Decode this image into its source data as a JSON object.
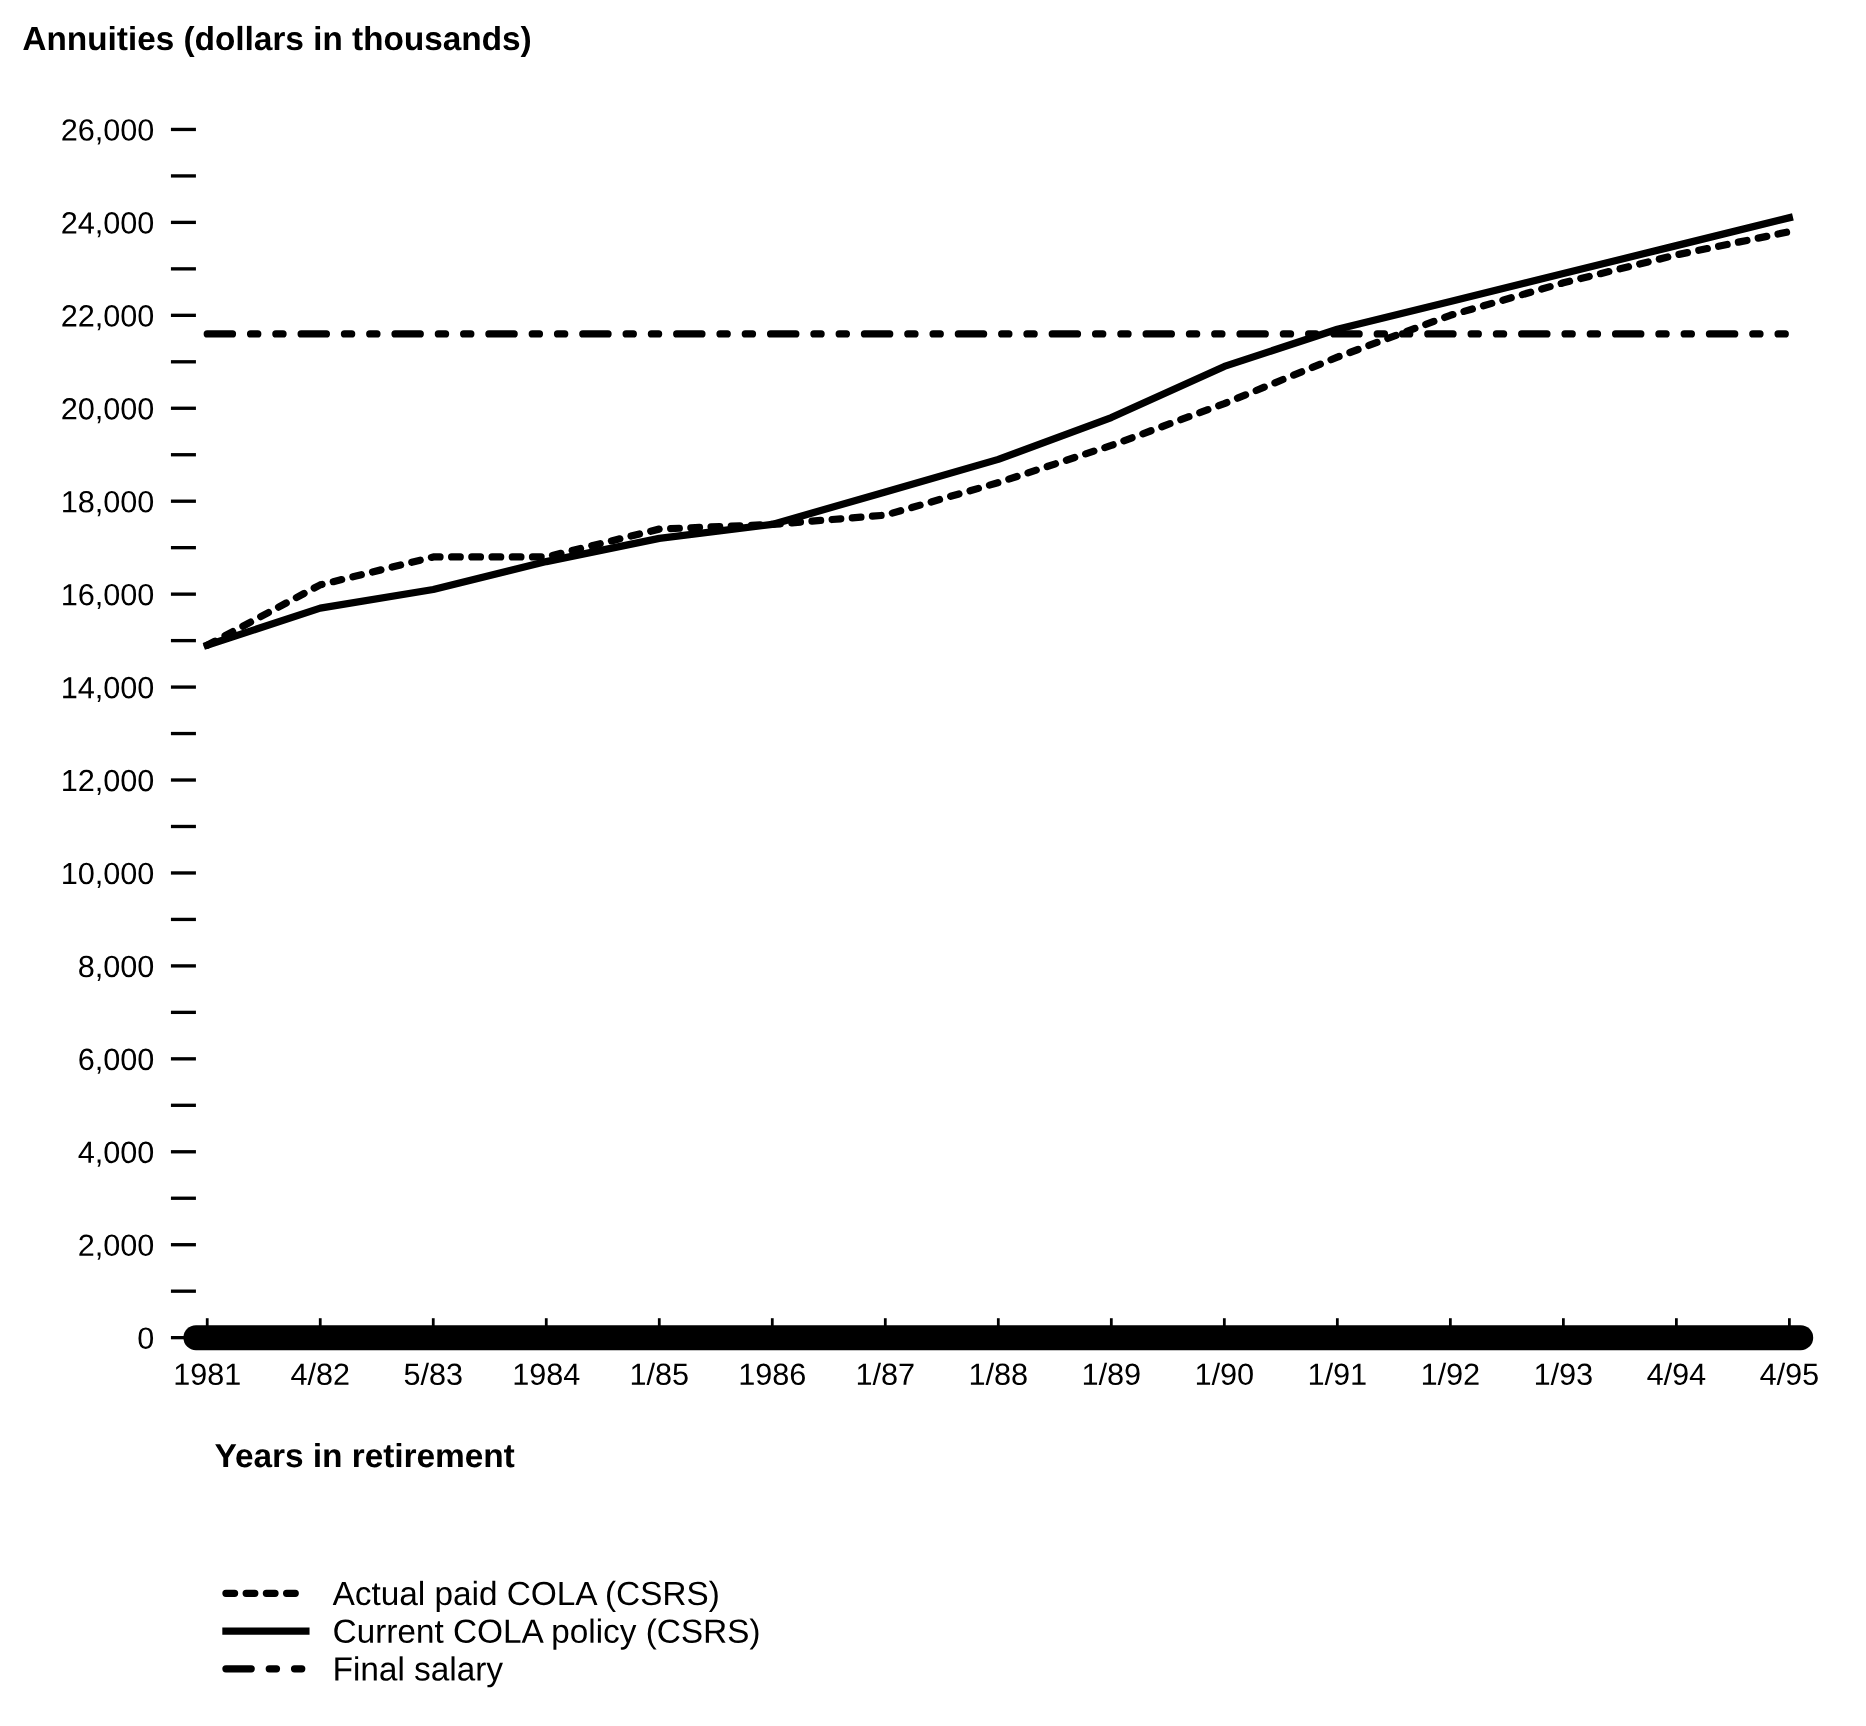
{
  "chart_data": {
    "type": "line",
    "ylabel": "Annuities (dollars in thousands)",
    "xlabel": "Years in retirement",
    "categories": [
      "1981",
      "4/82",
      "5/83",
      "1984",
      "1/85",
      "1986",
      "1/87",
      "1/88",
      "1/89",
      "1/90",
      "1/91",
      "1/92",
      "1/93",
      "4/94",
      "4/95"
    ],
    "series": [
      {
        "name": "Actual paid COLA (CSRS)",
        "color": "#000000",
        "line_style": "dotted",
        "values": [
          14900,
          16200,
          16800,
          16800,
          17400,
          17500,
          17700,
          18400,
          19200,
          20100,
          21100,
          22000,
          22700,
          23300,
          23800
        ]
      },
      {
        "name": "Current COLA policy (CSRS)",
        "color": "#000000",
        "line_style": "solid",
        "values": [
          14900,
          15700,
          16100,
          16700,
          17200,
          17500,
          18200,
          18900,
          19800,
          20900,
          21700,
          22300,
          22900,
          23500,
          24100
        ]
      },
      {
        "name": "Final salary",
        "color": "#000000",
        "line_style": "dashdotdot",
        "values": [
          21600,
          21600,
          21600,
          21600,
          21600,
          21600,
          21600,
          21600,
          21600,
          21600,
          21600,
          21600,
          21600,
          21600,
          21600
        ]
      }
    ],
    "ylim": [
      0,
      26000
    ],
    "yticks": [
      0,
      {
        "value": 1000,
        "label": null
      },
      {
        "value": 2000,
        "label": "2,000"
      },
      {
        "value": 3000,
        "label": null
      },
      {
        "value": 4000,
        "label": "4,000"
      },
      {
        "value": 5000,
        "label": null
      },
      {
        "value": 6000,
        "label": "6,000"
      },
      {
        "value": 7000,
        "label": null
      },
      {
        "value": 8000,
        "label": "8,000"
      },
      {
        "value": 9000,
        "label": null
      },
      {
        "value": 10000,
        "label": "10,000"
      },
      {
        "value": 11000,
        "label": null
      },
      {
        "value": 12000,
        "label": "12,000"
      },
      {
        "value": 13000,
        "label": null
      },
      {
        "value": 14000,
        "label": "14,000"
      },
      {
        "value": 15000,
        "label": null
      },
      {
        "value": 16000,
        "label": "16,000"
      },
      {
        "value": 17000,
        "label": null
      },
      {
        "value": 18000,
        "label": "18,000"
      },
      {
        "value": 19000,
        "label": null
      },
      {
        "value": 20000,
        "label": "20,000"
      },
      {
        "value": 21000,
        "label": null
      },
      {
        "value": 22000,
        "label": "22,000"
      },
      {
        "value": 23000,
        "label": null
      },
      {
        "value": 24000,
        "label": "24,000"
      },
      {
        "value": 25000,
        "label": null
      },
      {
        "value": 26000,
        "label": "26,000"
      }
    ],
    "grid": false,
    "legend": "bottom left"
  }
}
